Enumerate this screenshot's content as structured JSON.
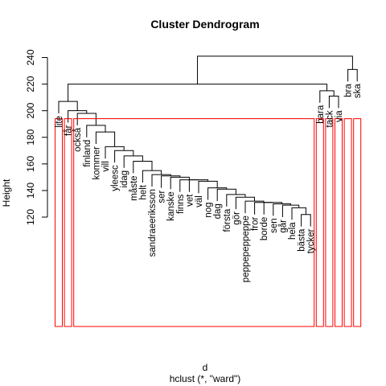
{
  "chart_data": {
    "type": "dendrogram",
    "title": "Cluster Dendrogram",
    "xlabel": "d",
    "subtitle": "hclust (*, \"ward\")",
    "ylabel": "Height",
    "ylim": [
      120,
      240
    ],
    "yticks": [
      120,
      140,
      160,
      180,
      200,
      220,
      240
    ],
    "leaves": [
      "lite",
      "får",
      "också",
      "finland",
      "kommer",
      "vill",
      "yleesc",
      "idag",
      "måste",
      "helt",
      "sandraeeriksson",
      "ser",
      "kanske",
      "finns",
      "vet",
      "väl",
      "nog",
      "dag",
      "första",
      "gör",
      "peppepeppeppe",
      "fror",
      "borde",
      "sen",
      "går",
      "hela",
      "bästa",
      "tycker",
      "bara",
      "tack",
      "via",
      "bra",
      "ska"
    ],
    "merges": [
      [
        -27,
        -28,
        122
      ],
      [
        -26,
        1,
        127
      ],
      [
        -25,
        2,
        129
      ],
      [
        -24,
        3,
        130
      ],
      [
        -23,
        4,
        131
      ],
      [
        -22,
        5,
        131
      ],
      [
        -21,
        6,
        132
      ],
      [
        -20,
        7,
        135
      ],
      [
        -19,
        8,
        137
      ],
      [
        -18,
        9,
        141
      ],
      [
        -17,
        10,
        142
      ],
      [
        -16,
        11,
        147
      ],
      [
        -15,
        12,
        148
      ],
      [
        -14,
        13,
        148
      ],
      [
        -13,
        14,
        150
      ],
      [
        -12,
        15,
        151
      ],
      [
        -11,
        16,
        152
      ],
      [
        -10,
        17,
        155
      ],
      [
        -9,
        18,
        162
      ],
      [
        -8,
        19,
        166
      ],
      [
        -7,
        20,
        170
      ],
      [
        -6,
        21,
        173
      ],
      [
        -5,
        22,
        184
      ],
      [
        -4,
        23,
        189
      ],
      [
        -3,
        24,
        198
      ],
      [
        -2,
        25,
        200
      ],
      [
        -1,
        26,
        207
      ],
      [
        -30,
        -31,
        211
      ],
      [
        -29,
        28,
        215
      ],
      [
        27,
        29,
        220
      ],
      [
        -32,
        -33,
        231
      ],
      [
        30,
        31,
        241
      ]
    ],
    "rect_hang_height": 194,
    "rect_groups": [
      [
        1,
        1
      ],
      [
        2,
        2
      ],
      [
        3,
        28
      ],
      [
        29,
        29
      ],
      [
        30,
        30
      ],
      [
        31,
        31
      ],
      [
        32,
        32
      ],
      [
        33,
        33
      ]
    ],
    "rect_color": "#ff0000"
  }
}
